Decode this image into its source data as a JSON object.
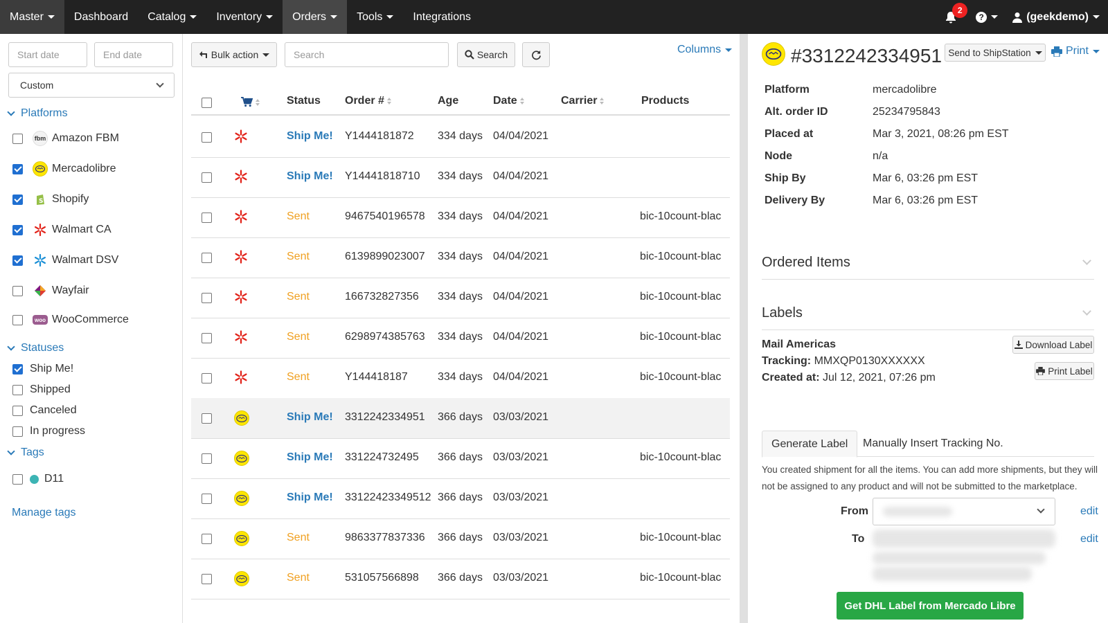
{
  "nav": {
    "master": "Master",
    "items": [
      "Dashboard",
      "Catalog",
      "Inventory",
      "Orders",
      "Tools",
      "Integrations"
    ],
    "notification_count": "2",
    "user": "(geekdemo)"
  },
  "sidebar": {
    "start_date_placeholder": "Start date",
    "end_date_placeholder": "End date",
    "range_select": "Custom",
    "platforms_title": "Platforms",
    "platforms": [
      {
        "label": "Amazon FBM",
        "checked": false,
        "icon": "fbm-icon"
      },
      {
        "label": "Mercadolibre",
        "checked": true,
        "icon": "mercadolibre-icon"
      },
      {
        "label": "Shopify",
        "checked": true,
        "icon": "shopify-icon"
      },
      {
        "label": "Walmart CA",
        "checked": true,
        "icon": "walmart-icon"
      },
      {
        "label": "Walmart DSV",
        "checked": true,
        "icon": "walmart-dsv-icon"
      },
      {
        "label": "Wayfair",
        "checked": false,
        "icon": "wayfair-icon"
      },
      {
        "label": "WooCommerce",
        "checked": false,
        "icon": "woocommerce-icon"
      }
    ],
    "fbm_icon_text": "fbm",
    "woo_icon_text": "woo",
    "statuses_title": "Statuses",
    "statuses": [
      {
        "label": "Ship Me!",
        "checked": true
      },
      {
        "label": "Shipped",
        "checked": false
      },
      {
        "label": "Canceled",
        "checked": false
      },
      {
        "label": "In progress",
        "checked": false
      }
    ],
    "tags_title": "Tags",
    "tag_label": "D11",
    "manage_tags": "Manage tags"
  },
  "toolbar": {
    "bulk_action": "Bulk action",
    "search_placeholder": "Search",
    "search_button": "Search",
    "columns": "Columns"
  },
  "table": {
    "headers": {
      "status": "Status",
      "order": "Order #",
      "age": "Age",
      "date": "Date",
      "carrier": "Carrier",
      "products": "Products"
    },
    "rows": [
      {
        "platform": "walmart",
        "status": "Ship Me!",
        "order": "Y1444181872",
        "age": "334 days",
        "date": "04/04/2021",
        "carrier": "",
        "products": ""
      },
      {
        "platform": "walmart",
        "status": "Ship Me!",
        "order": "Y14441818710",
        "age": "334 days",
        "date": "04/04/2021",
        "carrier": "",
        "products": ""
      },
      {
        "platform": "walmart",
        "status": "Sent",
        "order": "9467540196578",
        "age": "334 days",
        "date": "04/04/2021",
        "carrier": "",
        "products": "bic-10count-blac"
      },
      {
        "platform": "walmart",
        "status": "Sent",
        "order": "6139899023007",
        "age": "334 days",
        "date": "04/04/2021",
        "carrier": "",
        "products": "bic-10count-blac"
      },
      {
        "platform": "walmart",
        "status": "Sent",
        "order": "166732827356",
        "age": "334 days",
        "date": "04/04/2021",
        "carrier": "",
        "products": "bic-10count-blac"
      },
      {
        "platform": "walmart",
        "status": "Sent",
        "order": "6298974385763",
        "age": "334 days",
        "date": "04/04/2021",
        "carrier": "",
        "products": "bic-10count-blac"
      },
      {
        "platform": "walmart",
        "status": "Sent",
        "order": "Y144418187",
        "age": "334 days",
        "date": "04/04/2021",
        "carrier": "",
        "products": "bic-10count-blac"
      },
      {
        "platform": "mercadolibre",
        "status": "Ship Me!",
        "order": "3312242334951",
        "age": "366 days",
        "date": "03/03/2021",
        "carrier": "",
        "products": "",
        "highlight": true
      },
      {
        "platform": "mercadolibre",
        "status": "Ship Me!",
        "order": "331224732495",
        "age": "366 days",
        "date": "03/03/2021",
        "carrier": "",
        "products": "bic-10count-blac"
      },
      {
        "platform": "mercadolibre",
        "status": "Ship Me!",
        "order": "33122423349512",
        "age": "366 days",
        "date": "03/03/2021",
        "carrier": "",
        "products": ""
      },
      {
        "platform": "mercadolibre",
        "status": "Sent",
        "order": "9863377837336",
        "age": "366 days",
        "date": "03/03/2021",
        "carrier": "",
        "products": "bic-10count-blac"
      },
      {
        "platform": "mercadolibre",
        "status": "Sent",
        "order": "531057566898",
        "age": "366 days",
        "date": "03/03/2021",
        "carrier": "",
        "products": "bic-10count-blac"
      }
    ]
  },
  "detail": {
    "order_title": "#3312242334951",
    "send_button": "Send to ShipStation",
    "print_button": "Print",
    "fields": [
      {
        "label": "Platform",
        "value": "mercadolibre"
      },
      {
        "label": "Alt. order ID",
        "value": "25234795843"
      },
      {
        "label": "Placed at",
        "value": "Mar 3, 2021, 08:26 pm EST"
      },
      {
        "label": "Node",
        "value": "n/a"
      },
      {
        "label": "Ship By",
        "value": "Mar 6, 03:26 pm EST"
      },
      {
        "label": "Delivery By",
        "value": "Mar 6, 03:26 pm EST"
      }
    ],
    "ordered_items_title": "Ordered Items",
    "labels_title": "Labels",
    "carrier_name": "Mail Americas",
    "tracking_label": "Tracking:",
    "tracking_value": "MMXQP0130XXXXXX",
    "created_label": "Created at:",
    "created_value": "Jul 12, 2021, 07:26 pm",
    "download_label": "Download Label",
    "print_label": "Print Label",
    "tab_generate": "Generate Label",
    "tab_manual": "Manually Insert Tracking No.",
    "note": "You created shipment for all the items. You can add more shipments, but they will not be assigned to any product and will not be submitted to the marketplace.",
    "from_label": "From",
    "to_label": "To",
    "edit": "edit",
    "green_button": "Get DHL Label from Mercado Libre"
  },
  "colors": {
    "accent": "#2a7ab8",
    "ship": "#2a7ab8",
    "sent": "#f0a020",
    "nav": "#222222",
    "green": "#28a745"
  }
}
